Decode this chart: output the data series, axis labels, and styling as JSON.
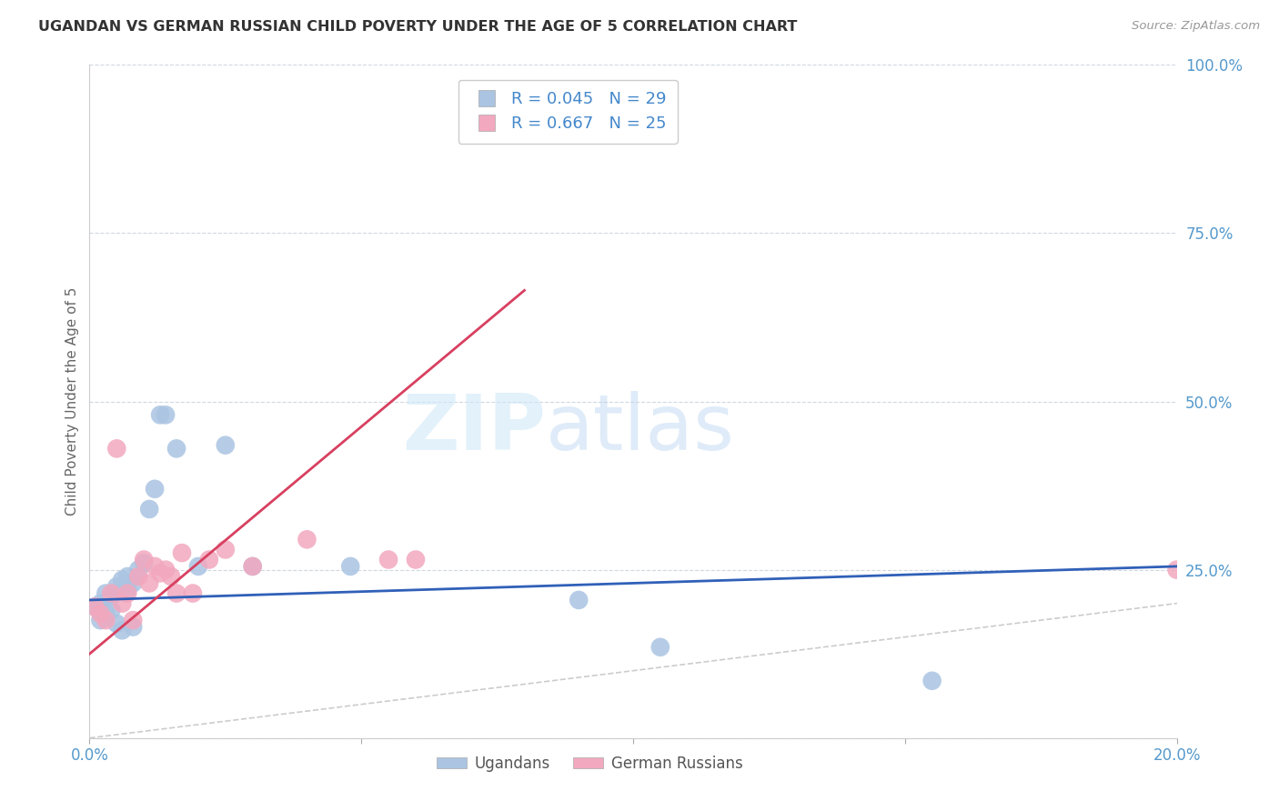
{
  "title": "UGANDAN VS GERMAN RUSSIAN CHILD POVERTY UNDER THE AGE OF 5 CORRELATION CHART",
  "source": "Source: ZipAtlas.com",
  "ylabel": "Child Poverty Under the Age of 5",
  "xlim": [
    0.0,
    0.2
  ],
  "ylim": [
    0.0,
    1.0
  ],
  "yticks": [
    0.0,
    0.25,
    0.5,
    0.75,
    1.0
  ],
  "ytick_labels": [
    "",
    "25.0%",
    "50.0%",
    "75.0%",
    "100.0%"
  ],
  "xticks": [
    0.0,
    0.05,
    0.1,
    0.15,
    0.2
  ],
  "xtick_labels": [
    "0.0%",
    "",
    "",
    "",
    "20.0%"
  ],
  "legend_r1": "R = 0.045",
  "legend_n1": "N = 29",
  "legend_r2": "R = 0.667",
  "legend_n2": "N = 25",
  "ugandan_color": "#aac4e2",
  "german_russian_color": "#f2a8be",
  "trend_ugandan_color": "#3060b8",
  "trend_german_russian_color": "#d84060",
  "diagonal_color": "#cccccc",
  "background_color": "#ffffff",
  "watermark_zip": "ZIP",
  "watermark_atlas": "atlas",
  "ugandan_x": [
    0.001,
    0.002,
    0.002,
    0.003,
    0.003,
    0.004,
    0.004,
    0.005,
    0.005,
    0.006,
    0.006,
    0.007,
    0.007,
    0.008,
    0.008,
    0.009,
    0.01,
    0.011,
    0.012,
    0.013,
    0.014,
    0.016,
    0.02,
    0.025,
    0.03,
    0.048,
    0.09,
    0.105,
    0.155
  ],
  "ugandan_y": [
    0.195,
    0.2,
    0.175,
    0.215,
    0.185,
    0.21,
    0.19,
    0.225,
    0.17,
    0.235,
    0.16,
    0.24,
    0.22,
    0.23,
    0.165,
    0.25,
    0.26,
    0.34,
    0.37,
    0.48,
    0.48,
    0.43,
    0.255,
    0.435,
    0.255,
    0.255,
    0.205,
    0.135,
    0.085
  ],
  "german_russian_x": [
    0.001,
    0.002,
    0.003,
    0.004,
    0.005,
    0.006,
    0.007,
    0.008,
    0.009,
    0.01,
    0.011,
    0.012,
    0.013,
    0.014,
    0.015,
    0.016,
    0.017,
    0.019,
    0.022,
    0.025,
    0.03,
    0.04,
    0.055,
    0.06,
    0.2
  ],
  "german_russian_y": [
    0.195,
    0.185,
    0.175,
    0.215,
    0.43,
    0.2,
    0.215,
    0.175,
    0.24,
    0.265,
    0.23,
    0.255,
    0.245,
    0.25,
    0.24,
    0.215,
    0.275,
    0.215,
    0.265,
    0.28,
    0.255,
    0.295,
    0.265,
    0.265,
    0.25
  ],
  "ugandan_trend_x": [
    0.0,
    0.2
  ],
  "ugandan_trend_y": [
    0.205,
    0.255
  ],
  "german_trend_x": [
    0.0,
    0.08
  ],
  "german_trend_y": [
    0.125,
    0.665
  ]
}
